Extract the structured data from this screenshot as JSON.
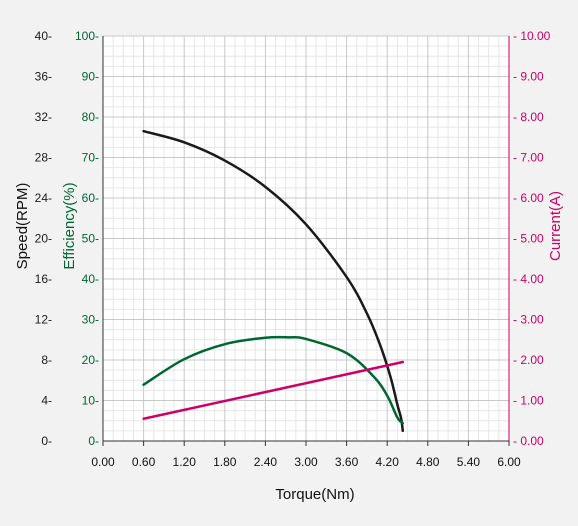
{
  "chart_data": {
    "type": "line",
    "xlabel": "Torque(Nm)",
    "x_ticks": [
      "0.00",
      "0.60",
      "1.20",
      "1.80",
      "2.40",
      "3.00",
      "3.60",
      "4.20",
      "4.80",
      "5.40",
      "6.00"
    ],
    "xlim": [
      0,
      6
    ],
    "grid": true,
    "axes": {
      "speed": {
        "label": "Speed(RPM)",
        "color": "#1a1a1a",
        "ylim": [
          0,
          40
        ],
        "ticks": [
          "0-",
          "4-",
          "8-",
          "12-",
          "16-",
          "20-",
          "24-",
          "28-",
          "32-",
          "36-",
          "40-"
        ]
      },
      "efficiency": {
        "label": "Efficiency(%)",
        "color": "#006633",
        "ylim": [
          0,
          100
        ],
        "ticks": [
          "0-",
          "10-",
          "20-",
          "30-",
          "40-",
          "50-",
          "60-",
          "70-",
          "80-",
          "90-",
          "100-"
        ]
      },
      "current": {
        "label": "Current(A)",
        "color": "#cc0066",
        "ylim": [
          0,
          10
        ],
        "ticks": [
          "- 0.00",
          "- 1.00",
          "- 2.00",
          "- 3.00",
          "- 4.00",
          "- 5.00",
          "- 6.00",
          "- 7.00",
          "- 8.00",
          "- 9.00",
          "- 10.00"
        ]
      }
    },
    "series": [
      {
        "axis": "speed",
        "color": "#1a1a1a",
        "x": [
          0.6,
          1.2,
          1.8,
          2.4,
          3.0,
          3.6,
          3.9,
          4.1,
          4.25,
          4.35,
          4.4,
          4.42,
          4.43
        ],
        "y": [
          30.6,
          29.5,
          27.7,
          25.1,
          21.4,
          16.2,
          12.6,
          9.4,
          6.3,
          3.6,
          2.4,
          1.6,
          1.0
        ]
      },
      {
        "axis": "efficiency",
        "color": "#006633",
        "x": [
          0.6,
          1.2,
          1.8,
          2.4,
          2.75,
          3.0,
          3.6,
          4.0,
          4.2,
          4.35,
          4.43
        ],
        "y": [
          13.9,
          20.2,
          23.9,
          25.5,
          25.6,
          25.2,
          21.7,
          15.9,
          11.2,
          5.8,
          4.4
        ]
      },
      {
        "axis": "current",
        "color": "#cc0066",
        "x": [
          0.6,
          4.43
        ],
        "y": [
          0.55,
          1.95
        ]
      }
    ]
  }
}
